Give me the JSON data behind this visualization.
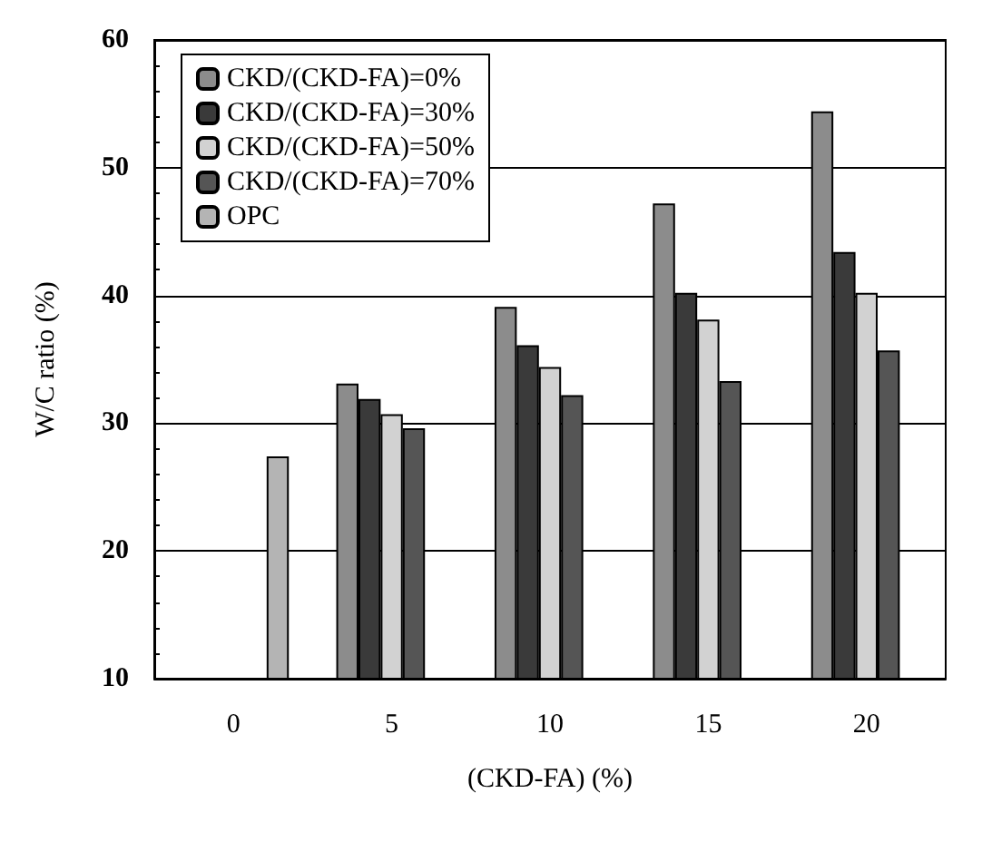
{
  "chart_data": {
    "type": "bar",
    "xlabel": "(CKD-FA) (%)",
    "ylabel": "W/C ratio (%)",
    "categories": [
      "0",
      "5",
      "10",
      "15",
      "20"
    ],
    "series": [
      {
        "name": "CKD/(CKD-FA)=0%",
        "color": "#8c8c8c",
        "values": [
          null,
          33.1,
          39.1,
          47.2,
          54.4
        ]
      },
      {
        "name": "CKD/(CKD-FA)=30%",
        "color": "#3a3a3a",
        "values": [
          null,
          31.9,
          36.1,
          40.2,
          43.4
        ]
      },
      {
        "name": "CKD/(CKD-FA)=50%",
        "color": "#d2d2d2",
        "values": [
          null,
          30.7,
          34.4,
          38.1,
          40.2
        ]
      },
      {
        "name": "CKD/(CKD-FA)=70%",
        "color": "#555555",
        "values": [
          null,
          29.6,
          32.2,
          33.3,
          35.7
        ]
      },
      {
        "name": "OPC",
        "color": "#b4b4b4",
        "values": [
          27.4,
          null,
          null,
          null,
          null
        ]
      }
    ],
    "ylim": [
      10,
      60
    ],
    "yticks": [
      10,
      20,
      30,
      40,
      50,
      60
    ],
    "grid": "y",
    "legend": "top left"
  }
}
